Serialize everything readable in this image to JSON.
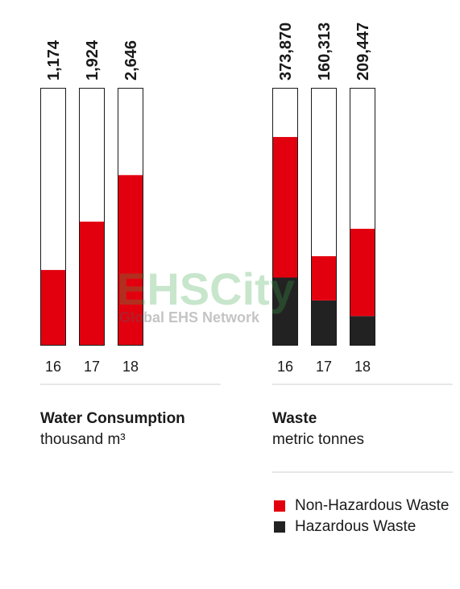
{
  "chart_data": [
    {
      "type": "bar",
      "title": "Water Consumption",
      "unit": "thousand m³",
      "categories": [
        "16",
        "17",
        "18"
      ],
      "value_labels": [
        "1,174",
        "1,924",
        "2,646"
      ],
      "series": [
        {
          "values": [
            1174,
            1924,
            2646
          ],
          "color": "#e2000f"
        }
      ],
      "ylim": [
        0,
        4000
      ]
    },
    {
      "type": "bar",
      "stacked": true,
      "title": "Waste",
      "unit": "metric tonnes",
      "categories": [
        "16",
        "17",
        "18"
      ],
      "value_labels": [
        "373,870",
        "160,313",
        "209,447"
      ],
      "series": [
        {
          "name": "Hazardous Waste",
          "values": [
            122000,
            81000,
            53000
          ],
          "color": "#222222"
        },
        {
          "name": "Non-Hazardous Waste",
          "values": [
            251870,
            79313,
            156447
          ],
          "color": "#e2000f"
        }
      ],
      "ylim": [
        0,
        462000
      ]
    }
  ],
  "legend": {
    "non_hazardous": "Non-Hazardous Waste",
    "hazardous": "Hazardous Waste",
    "non_hazardous_color": "#e2000f",
    "hazardous_color": "#222222"
  },
  "watermark": {
    "main": "EHSCity",
    "sub": "Global EHS Network"
  }
}
